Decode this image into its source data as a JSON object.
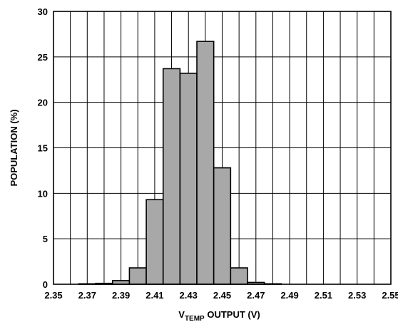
{
  "chart_data": {
    "type": "bar",
    "title": "",
    "xlabel": {
      "main": "V",
      "sub": "TEMP",
      "rest": " OUTPUT (V)"
    },
    "ylabel": "POPULATION (%)",
    "xlim": [
      2.35,
      2.55
    ],
    "ylim": [
      0,
      30
    ],
    "grid": true,
    "x_ticks": [
      "2.35",
      "2.37",
      "2.39",
      "2.41",
      "2.43",
      "2.45",
      "2.47",
      "2.49",
      "2.51",
      "2.53",
      "2.55"
    ],
    "y_ticks": [
      "0",
      "5",
      "10",
      "15",
      "20",
      "25",
      "30"
    ],
    "x_tick_values": [
      2.35,
      2.37,
      2.39,
      2.41,
      2.43,
      2.45,
      2.47,
      2.49,
      2.51,
      2.53,
      2.55
    ],
    "y_tick_values": [
      0,
      5,
      10,
      15,
      20,
      25,
      30
    ],
    "grid_step_x": 0.01,
    "bin_width": 0.01,
    "bins": [
      {
        "center": 2.37,
        "value": 0.05
      },
      {
        "center": 2.38,
        "value": 0.1
      },
      {
        "center": 2.39,
        "value": 0.4
      },
      {
        "center": 2.4,
        "value": 1.8
      },
      {
        "center": 2.41,
        "value": 9.3
      },
      {
        "center": 2.42,
        "value": 23.7
      },
      {
        "center": 2.43,
        "value": 23.2
      },
      {
        "center": 2.44,
        "value": 26.7
      },
      {
        "center": 2.45,
        "value": 12.8
      },
      {
        "center": 2.46,
        "value": 1.8
      },
      {
        "center": 2.47,
        "value": 0.2
      },
      {
        "center": 2.48,
        "value": 0.05
      }
    ],
    "bar_color": "#a8a8a8"
  }
}
